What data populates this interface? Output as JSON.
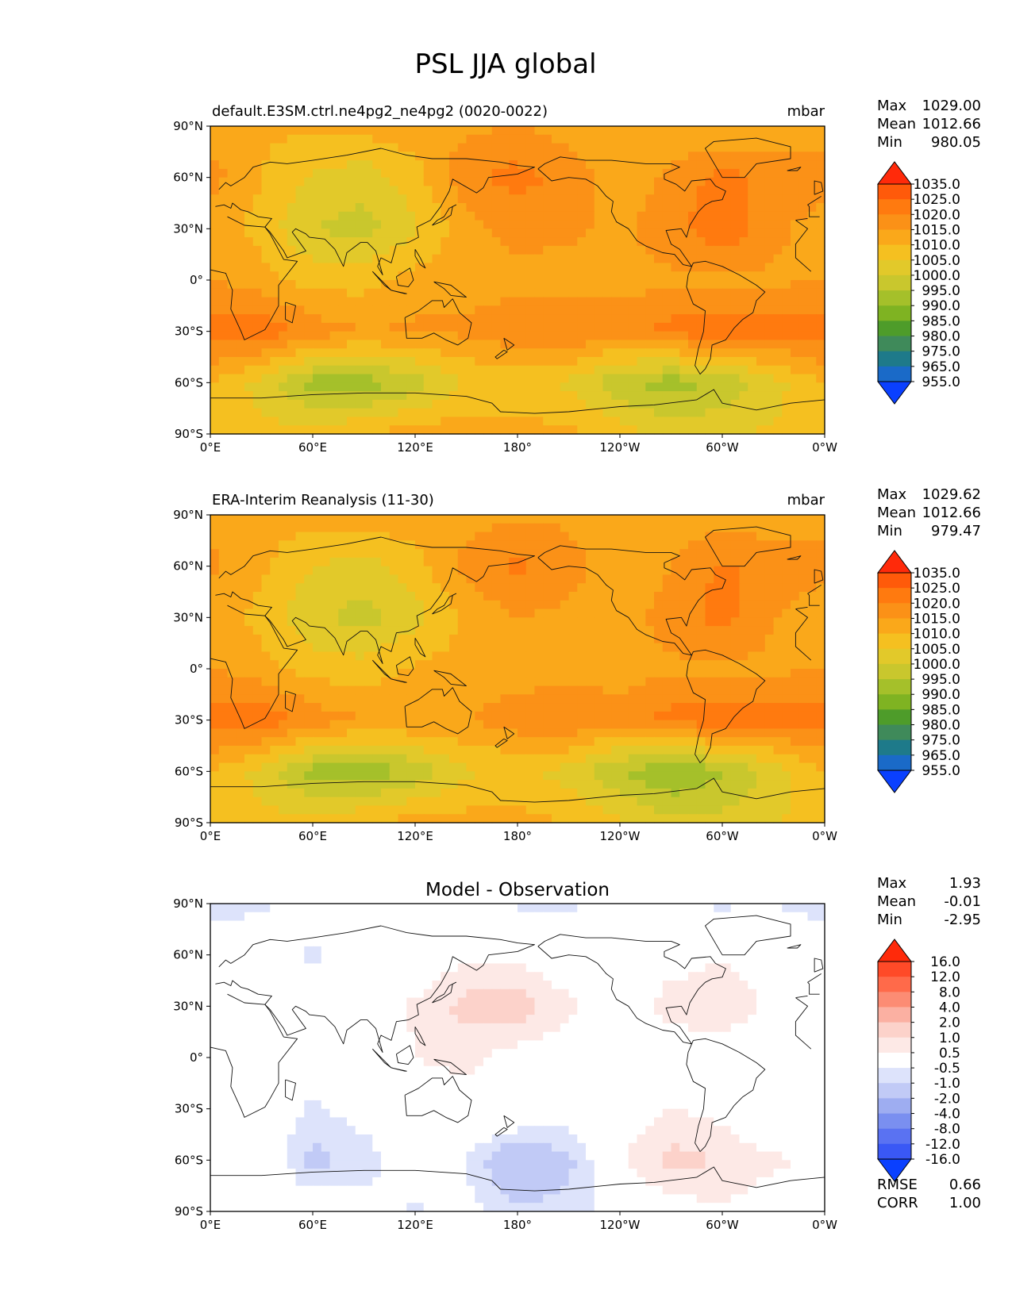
{
  "figure": {
    "title": "PSL JJA global"
  },
  "axes": {
    "lat_ticks": [
      "90°N",
      "60°N",
      "30°N",
      "0°",
      "30°S",
      "60°S",
      "90°S"
    ],
    "lon_ticks": [
      "0°E",
      "60°E",
      "120°E",
      "180°",
      "120°W",
      "60°W",
      "0°W"
    ]
  },
  "chart_data": [
    {
      "type": "heatmap",
      "panel": "model",
      "title": "default.E3SM.ctrl.ne4pg2_ne4pg2 (0020-0022)",
      "units": "mbar",
      "stats": {
        "max_label": "Max",
        "max": "1029.00",
        "mean_label": "Mean",
        "mean": "1012.66",
        "min_label": "Min",
        "min": "980.05"
      },
      "xlim": [
        0,
        360
      ],
      "ylim": [
        -90,
        90
      ],
      "colorbar": {
        "labels": [
          "1035.0",
          "1025.0",
          "1020.0",
          "1015.0",
          "1010.0",
          "1005.0",
          "1000.0",
          "995.0",
          "990.0",
          "985.0",
          "980.0",
          "975.0",
          "965.0",
          "955.0"
        ],
        "colors": [
          "#ff2a0a",
          "#ff5a0a",
          "#ff7a0f",
          "#fb9117",
          "#faa81a",
          "#f5c020",
          "#e2c92a",
          "#c9c72d",
          "#a5c02a",
          "#7fb322",
          "#4e9c2a",
          "#3f8a5a",
          "#1e7a8a",
          "#1a6ac8",
          "#0f50ff"
        ],
        "over": "#ff2a0a",
        "under": "#0a40ff"
      },
      "field": {
        "grid": [
          [
            1013,
            1011,
            1011,
            1012,
            1013,
            1014,
            1015,
            1013,
            1011,
            1011,
            1010,
            1012
          ],
          [
            1017,
            1010,
            1004,
            1002,
            1008,
            1019,
            1022,
            1018,
            1012,
            1016,
            1022,
            1018
          ],
          [
            1013,
            1008,
            1000,
            998,
            1004,
            1013,
            1017,
            1016,
            1014,
            1018,
            1024,
            1016
          ],
          [
            1015,
            1012,
            1008,
            1008,
            1012,
            1013,
            1013,
            1013,
            1013,
            1014,
            1014,
            1014
          ],
          [
            1023,
            1024,
            1018,
            1015,
            1016,
            1016,
            1019,
            1020,
            1018,
            1022,
            1023,
            1022
          ],
          [
            1010,
            1003,
            993,
            992,
            997,
            1005,
            1007,
            1004,
            996,
            992,
            996,
            1003
          ],
          [
            1006,
            1007,
            1007,
            1010,
            1013,
            1013,
            1012,
            1011,
            1008,
            1003,
            1004,
            1006
          ]
        ]
      }
    },
    {
      "type": "heatmap",
      "panel": "observation",
      "title": "ERA-Interim Reanalysis (11-30)",
      "units": "mbar",
      "stats": {
        "max_label": "Max",
        "max": "1029.62",
        "mean_label": "Mean",
        "mean": "1012.66",
        "min_label": "Min",
        "min": "979.47"
      },
      "xlim": [
        0,
        360
      ],
      "ylim": [
        -90,
        90
      ],
      "colorbar": {
        "labels": [
          "1035.0",
          "1025.0",
          "1020.0",
          "1015.0",
          "1010.0",
          "1005.0",
          "1000.0",
          "995.0",
          "990.0",
          "985.0",
          "980.0",
          "975.0",
          "965.0",
          "955.0"
        ],
        "colors": [
          "#ff2a0a",
          "#ff5a0a",
          "#ff7a0f",
          "#fb9117",
          "#faa81a",
          "#f5c020",
          "#e2c92a",
          "#c9c72d",
          "#a5c02a",
          "#7fb322",
          "#4e9c2a",
          "#3f8a5a",
          "#1e7a8a",
          "#1a6ac8",
          "#0f50ff"
        ],
        "over": "#ff2a0a",
        "under": "#0a40ff"
      },
      "field": {
        "grid": [
          [
            1014,
            1012,
            1012,
            1013,
            1013,
            1013,
            1014,
            1014,
            1013,
            1013,
            1012,
            1013
          ],
          [
            1016,
            1011,
            1005,
            1003,
            1008,
            1017,
            1021,
            1017,
            1011,
            1015,
            1021,
            1017
          ],
          [
            1013,
            1008,
            1001,
            998,
            1003,
            1011,
            1015,
            1014,
            1013,
            1017,
            1022,
            1015
          ],
          [
            1015,
            1012,
            1008,
            1007,
            1011,
            1012,
            1012,
            1013,
            1013,
            1014,
            1014,
            1014
          ],
          [
            1023,
            1024,
            1018,
            1015,
            1015,
            1015,
            1018,
            1020,
            1017,
            1022,
            1023,
            1022
          ],
          [
            1010,
            1003,
            993,
            991,
            996,
            1004,
            1006,
            1003,
            995,
            990,
            994,
            1002
          ],
          [
            1006,
            1007,
            1007,
            1010,
            1012,
            1012,
            1012,
            1010,
            1006,
            1001,
            1002,
            1005
          ]
        ]
      }
    },
    {
      "type": "heatmap",
      "panel": "difference",
      "title": "Model - Observation",
      "units": "",
      "stats": {
        "max_label": "Max",
        "max": "1.93",
        "mean_label": "Mean",
        "mean": "-0.01",
        "min_label": "Min",
        "min": "-2.95",
        "rmse_label": "RMSE",
        "rmse": "0.66",
        "corr_label": "CORR",
        "corr": "1.00"
      },
      "xlim": [
        0,
        360
      ],
      "ylim": [
        -90,
        90
      ],
      "colorbar": {
        "labels": [
          "16.0",
          "12.0",
          "8.0",
          "4.0",
          "2.0",
          "1.0",
          "0.5",
          "-0.5",
          "-1.0",
          "-2.0",
          "-4.0",
          "-8.0",
          "-12.0",
          "-16.0"
        ],
        "colors": [
          "#ff2a0a",
          "#ff4a28",
          "#ff6a4a",
          "#fc8c74",
          "#fbb0a2",
          "#fcd2ca",
          "#fde9e6",
          "#ffffff",
          "#dde3fb",
          "#c1caf6",
          "#9eadf1",
          "#7a8ff0",
          "#5a72f2",
          "#3a58f5",
          "#1a40ff"
        ],
        "over": "#ff2a0a",
        "under": "#0a40ff"
      },
      "field": {
        "grid": [
          [
            -0.8,
            -0.6,
            -0.3,
            0.0,
            0.0,
            -0.2,
            -0.6,
            -0.6,
            -0.2,
            -0.4,
            -0.6,
            -0.5
          ],
          [
            0.0,
            0.0,
            -0.6,
            -0.1,
            0.0,
            0.4,
            0.3,
            0.0,
            -0.1,
            0.2,
            0.4,
            0.1
          ],
          [
            0.1,
            -0.4,
            -0.2,
            0.0,
            0.6,
            1.2,
            1.4,
            0.6,
            0.0,
            0.8,
            1.0,
            0.3
          ],
          [
            -0.1,
            -0.3,
            0.0,
            0.0,
            0.5,
            0.7,
            0.2,
            0.1,
            0.0,
            0.0,
            0.0,
            -0.2
          ],
          [
            -0.3,
            0.0,
            -0.6,
            -0.2,
            0.0,
            0.2,
            0.4,
            0.0,
            0.2,
            0.5,
            0.3,
            -0.4
          ],
          [
            0.4,
            0.1,
            -1.2,
            -0.8,
            0.0,
            -0.5,
            -1.8,
            -1.2,
            0.4,
            1.2,
            1.0,
            0.6
          ],
          [
            -0.2,
            0.0,
            0.0,
            -0.2,
            -0.6,
            -0.3,
            -0.9,
            -0.8,
            -0.2,
            0.2,
            0.4,
            0.1
          ]
        ]
      }
    }
  ]
}
